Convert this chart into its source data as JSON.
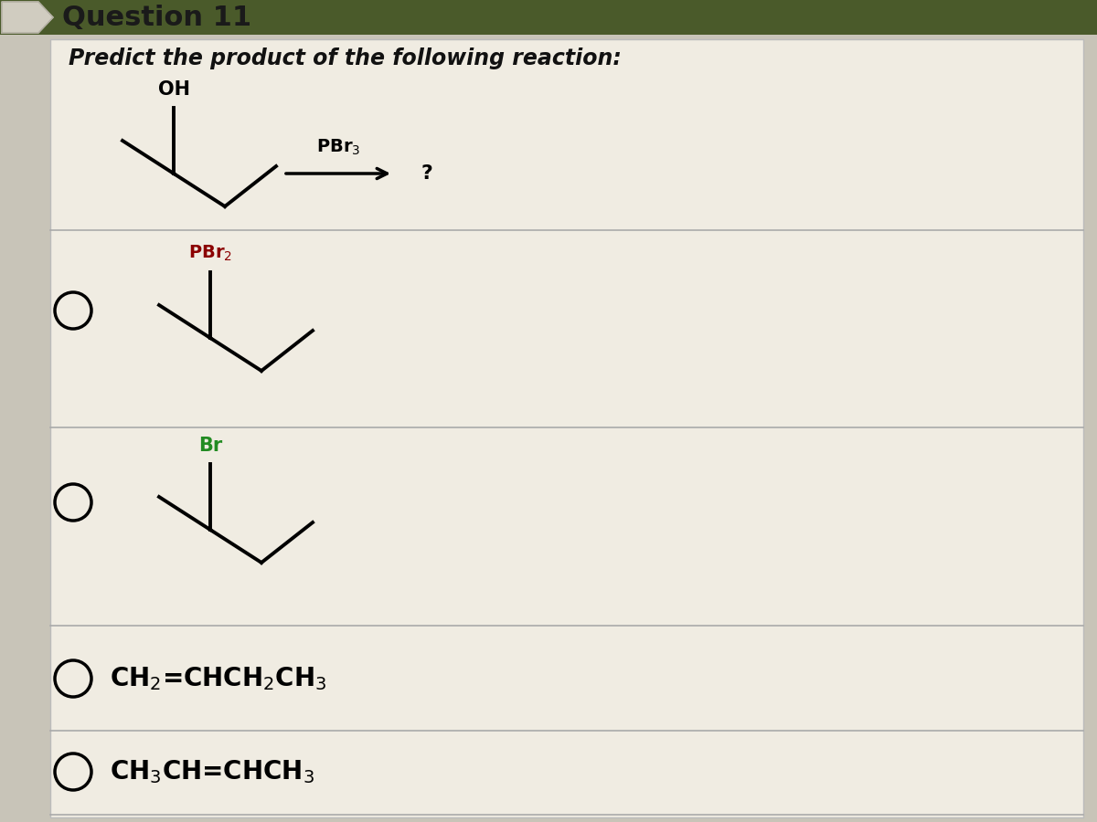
{
  "title": "Question 11",
  "title_bg_color": "#4a5a2a",
  "title_text_color": "#000000",
  "bg_color": "#c8c4b8",
  "content_bg_color": "#e8e4d8",
  "question_text": "Predict the product of the following reaction:",
  "reagent_arrow_label": "PBr₃",
  "question_mark": "?",
  "font_size_title": 22,
  "font_size_question": 17,
  "font_size_options": 20,
  "divider_color": "#aaaaaa",
  "pbr2_color": "#8B0000",
  "br_color": "#228B22"
}
